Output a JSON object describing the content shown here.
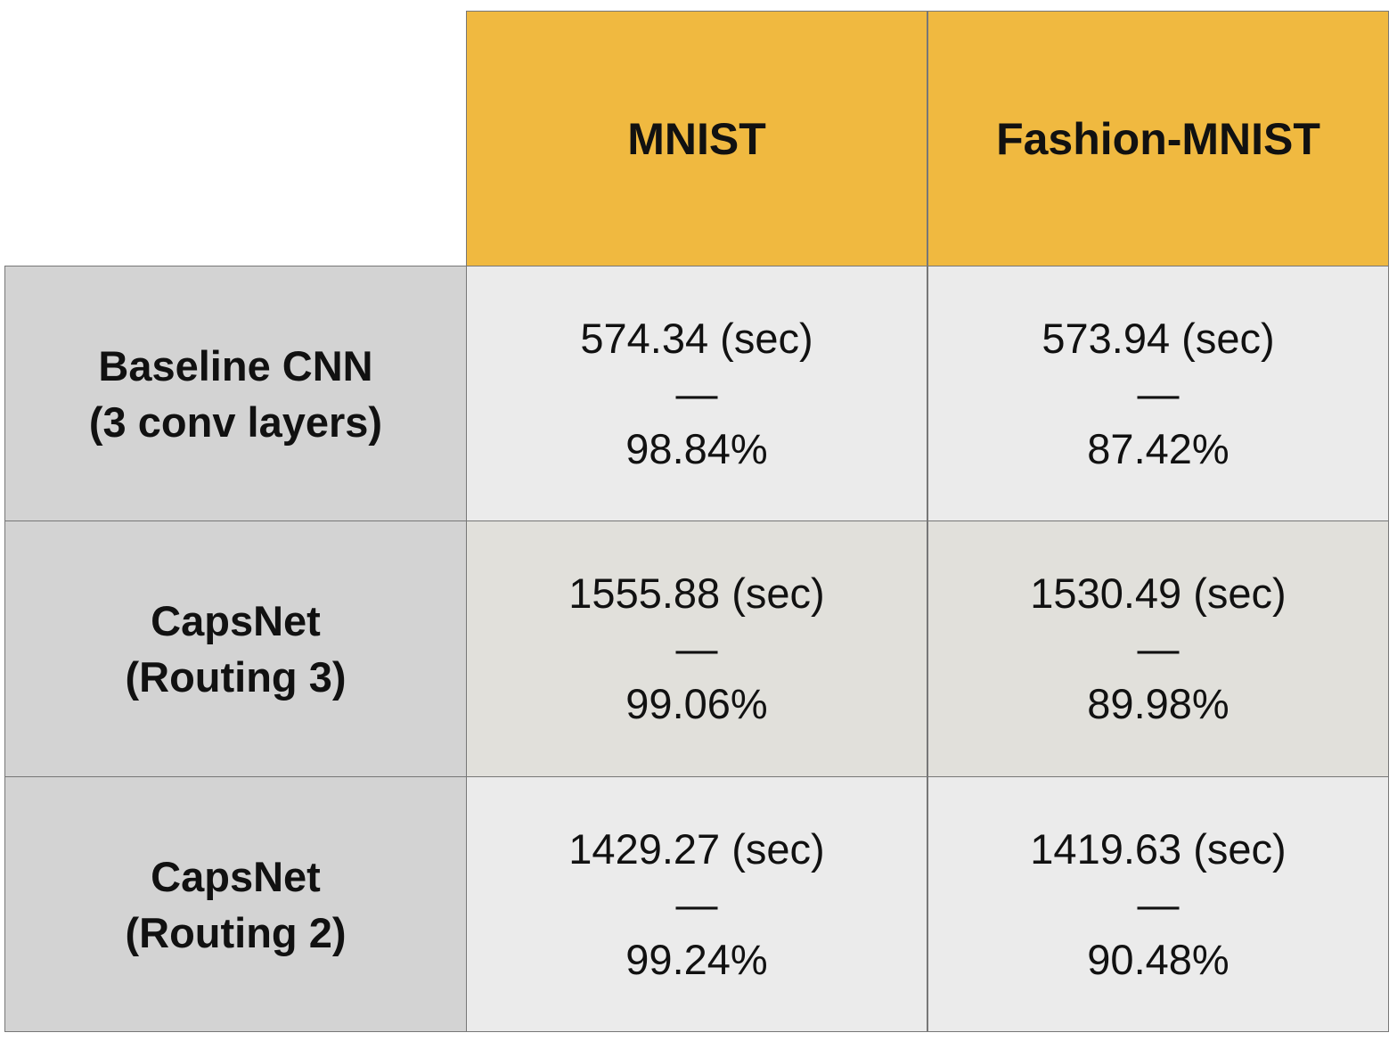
{
  "chart_data": {
    "type": "table",
    "columns": [
      "MNIST",
      "Fashion-MNIST"
    ],
    "rows": [
      {
        "label_lines": [
          "Baseline CNN",
          "(3 conv layers)"
        ],
        "cells": [
          {
            "time": "574.34 (sec)",
            "sep": "—",
            "accuracy": "98.84%"
          },
          {
            "time": "573.94 (sec)",
            "sep": "—",
            "accuracy": "87.42%"
          }
        ]
      },
      {
        "label_lines": [
          "CapsNet",
          "(Routing 3)"
        ],
        "cells": [
          {
            "time": "1555.88 (sec)",
            "sep": "—",
            "accuracy": "99.06%"
          },
          {
            "time": "1530.49 (sec)",
            "sep": "—",
            "accuracy": "89.98%"
          }
        ]
      },
      {
        "label_lines": [
          "CapsNet",
          "(Routing 2)"
        ],
        "cells": [
          {
            "time": "1429.27 (sec)",
            "sep": "—",
            "accuracy": "99.24%"
          },
          {
            "time": "1419.63 (sec)",
            "sep": "—",
            "accuracy": "90.48%"
          }
        ]
      }
    ]
  },
  "colors": {
    "header_bg": "#f0b940",
    "row_header_bg": "#d3d3d3",
    "data_bg": "#ebebeb",
    "data_bg_alt": "#e1e0db",
    "border": "#777777"
  }
}
